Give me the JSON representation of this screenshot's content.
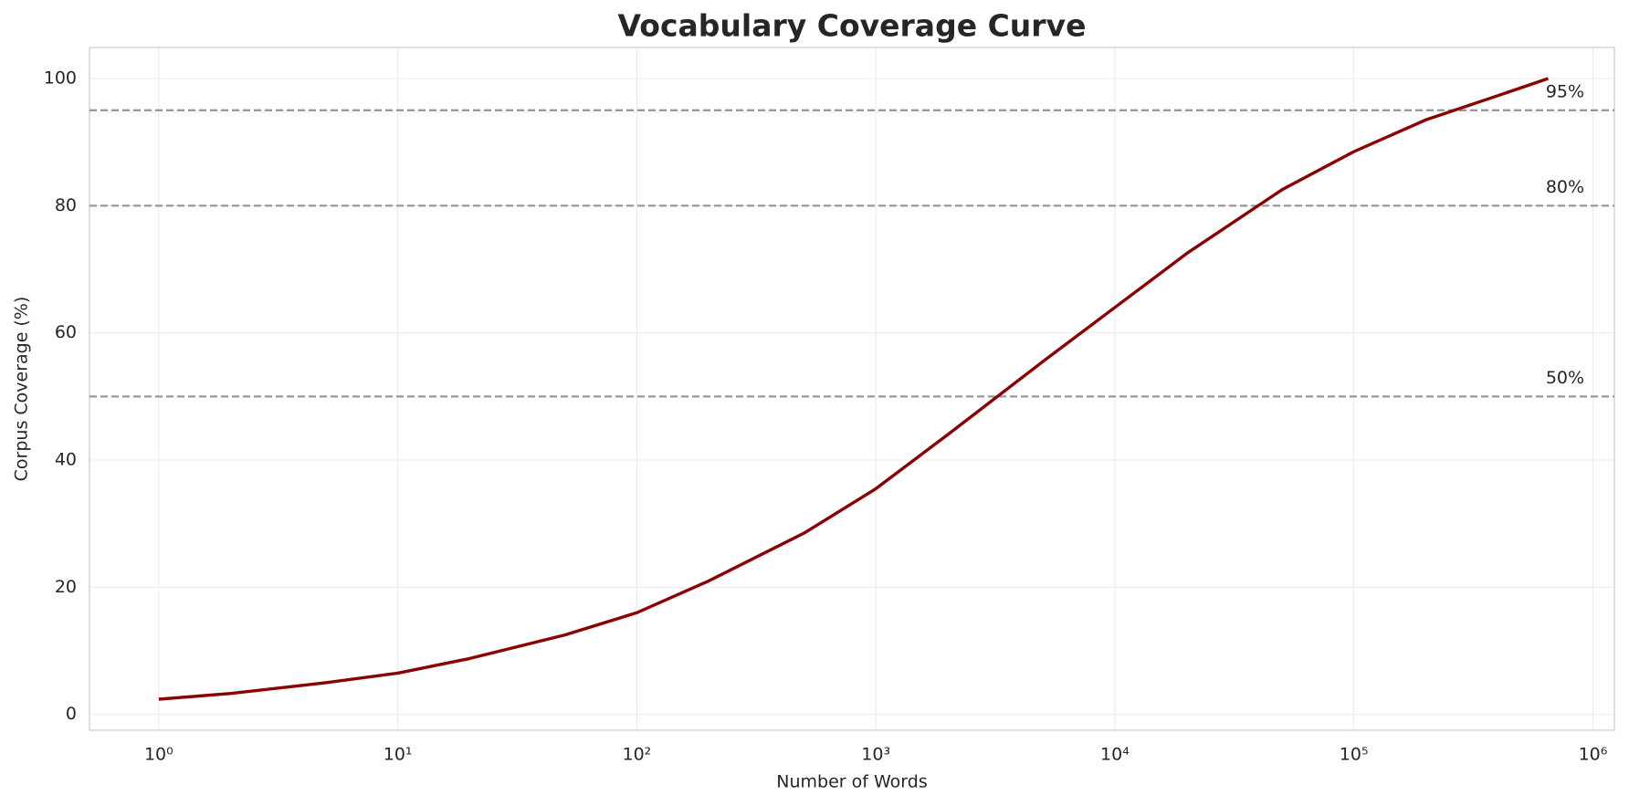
{
  "chart_data": {
    "type": "line",
    "title": "Vocabulary Coverage Curve",
    "x_label": "Number of Words",
    "y_label": "Corpus Coverage (%)",
    "x": [
      1,
      2,
      5,
      10,
      20,
      50,
      100,
      200,
      500,
      1000,
      2000,
      5000,
      10000,
      20000,
      50000,
      100000,
      200000,
      400000,
      650000
    ],
    "series": [
      {
        "name": "Coverage",
        "color": "#8b0000",
        "values": [
          2.4,
          3.3,
          5.0,
          6.5,
          8.8,
          12.5,
          16.0,
          21.0,
          28.5,
          35.5,
          44,
          55.5,
          64,
          72.5,
          82.5,
          88.5,
          93.5,
          97.3,
          100
        ]
      }
    ],
    "x_scale": "log",
    "xlim": [
      0.513,
      1230000
    ],
    "xticks": [
      {
        "value": 1,
        "label": "10⁰"
      },
      {
        "value": 10,
        "label": "10¹"
      },
      {
        "value": 100,
        "label": "10²"
      },
      {
        "value": 1000,
        "label": "10³"
      },
      {
        "value": 10000,
        "label": "10⁴"
      },
      {
        "value": 100000,
        "label": "10⁵"
      },
      {
        "value": 1000000,
        "label": "10⁶"
      }
    ],
    "ylim": [
      -2.48,
      104.88
    ],
    "yticks": [
      0,
      20,
      40,
      60,
      80,
      100
    ],
    "grid": true,
    "reference_lines": [
      {
        "value": 95,
        "label": "95%"
      },
      {
        "value": 80,
        "label": "80%"
      },
      {
        "value": 50,
        "label": "50%"
      }
    ],
    "reference_color": "#999999"
  }
}
